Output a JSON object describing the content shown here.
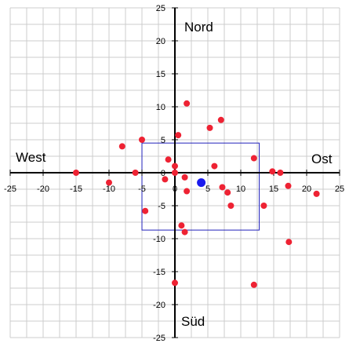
{
  "chart_data": {
    "type": "scatter",
    "xlim": [
      -25,
      25
    ],
    "ylim": [
      -25,
      25
    ],
    "x_ticks": [
      -25,
      -20,
      -15,
      -10,
      -5,
      0,
      5,
      10,
      15,
      20,
      25
    ],
    "y_ticks": [
      25,
      20,
      15,
      10,
      5,
      0,
      -5,
      -10,
      -15,
      -20,
      -25
    ],
    "grid": true,
    "direction_labels": {
      "north": "Nord",
      "south": "Süd",
      "west": "West",
      "east": "Ost"
    },
    "colors": {
      "points": "#ee2233",
      "center": "#1a1aee",
      "box": "#2222bb",
      "grid": "#cccccc",
      "axis": "#000000"
    },
    "points": [
      {
        "x": -15,
        "y": 0
      },
      {
        "x": -10,
        "y": -1.5
      },
      {
        "x": -8,
        "y": 4
      },
      {
        "x": -6,
        "y": 0
      },
      {
        "x": -5,
        "y": 5
      },
      {
        "x": -4.5,
        "y": -5.8
      },
      {
        "x": -1.5,
        "y": -1
      },
      {
        "x": -1,
        "y": 2
      },
      {
        "x": 0,
        "y": 1
      },
      {
        "x": 0,
        "y": 0
      },
      {
        "x": 0.5,
        "y": 5.7
      },
      {
        "x": 1,
        "y": -8
      },
      {
        "x": 1.5,
        "y": -9
      },
      {
        "x": 1.5,
        "y": -0.7
      },
      {
        "x": 1.8,
        "y": -2.8
      },
      {
        "x": 1.8,
        "y": 10.5
      },
      {
        "x": 6,
        "y": 1
      },
      {
        "x": 5.3,
        "y": 6.8
      },
      {
        "x": 7,
        "y": 8
      },
      {
        "x": 7.2,
        "y": -2.2
      },
      {
        "x": 8,
        "y": -3
      },
      {
        "x": 8.5,
        "y": -5
      },
      {
        "x": 12,
        "y": 2.2
      },
      {
        "x": 12,
        "y": -17
      },
      {
        "x": 13.5,
        "y": -5
      },
      {
        "x": 14.8,
        "y": 0.2
      },
      {
        "x": 16,
        "y": 0
      },
      {
        "x": 17.2,
        "y": -2
      },
      {
        "x": 17.3,
        "y": -10.5
      },
      {
        "x": 21.5,
        "y": -3.2
      },
      {
        "x": 0,
        "y": -16.7
      }
    ],
    "center": {
      "x": 4,
      "y": -1.5
    },
    "bounding_box": {
      "x0": -5,
      "x1": 12.8,
      "y0": -8.7,
      "y1": 4.5
    }
  }
}
